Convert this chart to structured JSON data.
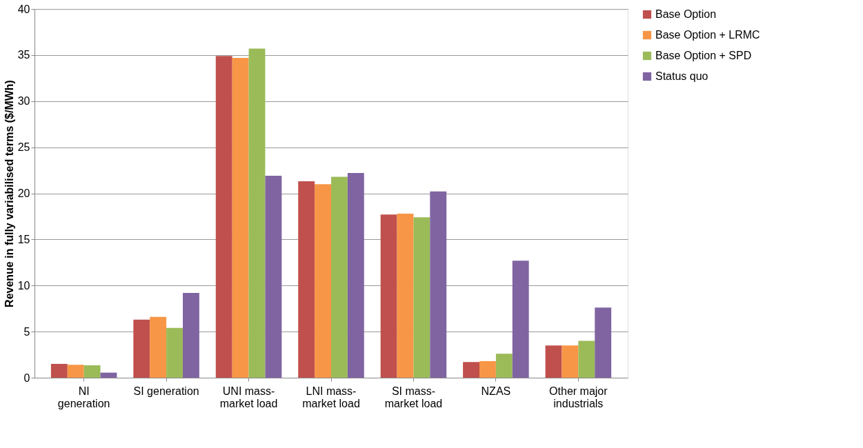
{
  "chart_data": {
    "type": "bar",
    "ylabel": "Revenue in fully variabilised terms ($/MWh)",
    "categories": [
      "NI\ngeneration",
      "SI generation",
      "UNI mass-\nmarket load",
      "LNI mass-\nmarket load",
      "SI mass-\nmarket load",
      "NZAS",
      "Other major\nindustrials"
    ],
    "series": [
      {
        "name": "Base Option",
        "color": "#c0504d",
        "values": [
          1.5,
          6.3,
          34.9,
          21.3,
          17.7,
          1.7,
          3.5
        ]
      },
      {
        "name": "Base Option + LRMC",
        "color": "#f79646",
        "values": [
          1.4,
          6.6,
          34.7,
          21.0,
          17.8,
          1.8,
          3.5
        ]
      },
      {
        "name": "Base Option + SPD",
        "color": "#9bbb59",
        "values": [
          1.35,
          5.4,
          35.7,
          21.8,
          17.4,
          2.6,
          4.0
        ]
      },
      {
        "name": "Status quo",
        "color": "#8064a2",
        "values": [
          0.55,
          9.2,
          21.9,
          22.2,
          20.2,
          12.7,
          7.6
        ]
      }
    ],
    "ylim": [
      0,
      40
    ],
    "yticks": [
      0,
      5,
      10,
      15,
      20,
      25,
      30,
      35,
      40
    ],
    "grid": "y",
    "legend": "right"
  }
}
